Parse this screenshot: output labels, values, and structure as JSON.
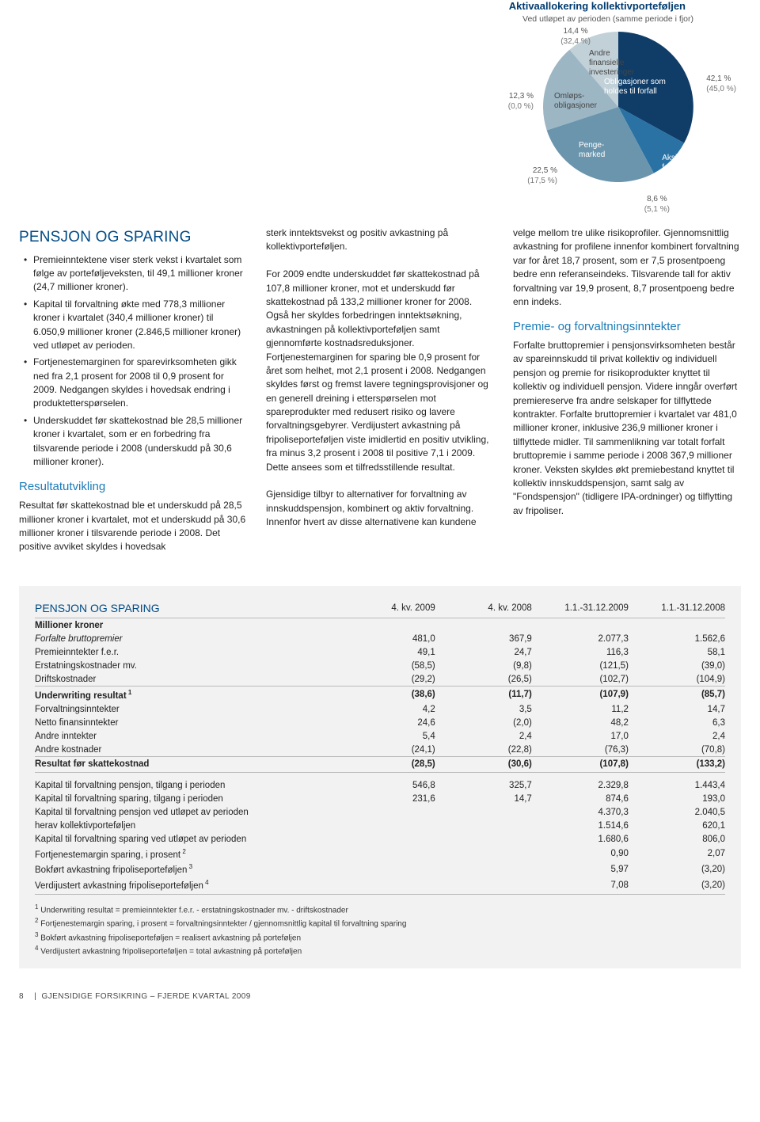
{
  "chart": {
    "title": "Aktivaallokering kollektivporteføljen",
    "subtitle": "Ved utløpet av perioden (samme periode i fjor)",
    "type": "pie",
    "background_color": "#ffffff",
    "labels": {
      "l1": {
        "main": "14,4 %",
        "sub": "(32,4 %)",
        "seg": "Andre finansielle investeringer"
      },
      "l2": {
        "main": "12,3 %",
        "sub": "(0,0 %)",
        "seg": "Omløps-\nobligasjoner"
      },
      "l3": {
        "main": "22,5 %",
        "sub": "(17,5 %)",
        "seg": "Penge-\nmarked"
      },
      "l4": {
        "main": "8,6 %",
        "sub": "(5,1 %)",
        "seg": "Aksje-\nfond"
      },
      "l5": {
        "main": "42,1 %",
        "sub": "(45,0 %)",
        "seg": "Obligasjoner som holdes til forfall"
      }
    },
    "slices": [
      {
        "name": "Obligasjoner som holdes til forfall",
        "value": 42.1,
        "prev": 45.0,
        "color": "#0f3d68"
      },
      {
        "name": "Aksjefond",
        "value": 8.6,
        "prev": 5.1,
        "color": "#2a72a4"
      },
      {
        "name": "Pengemarked",
        "value": 22.5,
        "prev": 17.5,
        "color": "#6b95ad"
      },
      {
        "name": "Omløpsobligasjoner",
        "value": 12.3,
        "prev": 0.0,
        "color": "#9db6c3"
      },
      {
        "name": "Andre finansielle investeringer",
        "value": 14.4,
        "prev": 32.4,
        "color": "#c2d1d8"
      }
    ]
  },
  "headings": {
    "h1": "PENSJON OG SPARING",
    "resultat": "Resultatutvikling",
    "premie": "Premie- og forvaltningsinntekter"
  },
  "bullets": {
    "b1": "Premieinntektene viser sterk vekst i kvartalet som følge av porteføljeveksten, til 49,1 millioner kroner (24,7 millioner kroner).",
    "b2": "Kapital til forvaltning økte med 778,3 millioner kroner i kvartalet (340,4 millioner kroner) til 6.050,9 millioner kroner (2.846,5 millioner kroner) ved utløpet av perioden.",
    "b3": "Fortjenestemarginen for sparevirksomheten gikk ned fra 2,1 prosent for 2008 til 0,9 prosent for 2009. Nedgangen skyldes i hovedsak endring i produktetterspørselen.",
    "b4": "Underskuddet før skattekostnad ble 28,5 millioner kroner i kvartalet, som er en forbedring fra tilsvarende periode i 2008 (underskudd på 30,6 millioner kroner)."
  },
  "paras": {
    "p1": "Resultat før skattekostnad ble et underskudd på 28,5 millioner kroner i kvartalet, mot et underskudd på 30,6 millioner kroner i tilsvarende periode i 2008. Det positive avviket skyldes i hovedsak",
    "p2": "sterk inntektsvekst og positiv avkastning på kollektivporteføljen.",
    "p3": "For 2009 endte underskuddet før skattekostnad på 107,8 millioner kroner, mot et underskudd før skattekostnad på 133,2 millioner kroner for 2008. Også her skyldes forbedringen inntektsøkning, avkastningen på kollektivporteføljen samt gjennomførte kostnadsreduksjoner. Fortjenestemarginen for sparing ble 0,9 prosent for året som helhet, mot 2,1 prosent i 2008. Nedgangen skyldes først og fremst lavere tegningsprovisjoner og en generell dreining i etterspørselen mot spareprodukter med redusert risiko og lavere forvaltningsgebyrer. Verdijustert avkastning på fripoliseporteføljen viste imidlertid en positiv utvikling, fra minus 3,2 prosent i 2008 til positive 7,1 i 2009. Dette ansees som et tilfredsstillende resultat.",
    "p4": "Gjensidige tilbyr to alternativer for forvaltning av innskuddspensjon, kombinert og aktiv forvaltning. Innenfor hvert av disse alternativene kan kundene",
    "p5": "velge mellom tre ulike risikoprofiler. Gjennomsnittlig avkastning for profilene innenfor kombinert forvaltning var for året 18,7 prosent, som er 7,5 prosentpoeng bedre enn referanseindeks. Tilsvarende tall for aktiv forvaltning var 19,9 prosent, 8,7 prosentpoeng bedre enn indeks.",
    "p6": "Forfalte bruttopremier i pensjonsvirksomheten består av spareinnskudd til privat kollektiv og individuell pensjon og premie for risikoprodukter knyttet til kollektiv og individuell pensjon. Videre inngår overført premiereserve fra andre selskaper for tilflyttede kontrakter. Forfalte bruttopremier i kvartalet var 481,0 millioner kroner, inklusive 236,9 millioner kroner i tilflyttede midler. Til sammenlikning var totalt forfalt bruttopremie i samme periode i 2008 367,9 millioner kroner. Veksten skyldes økt premiebestand knyttet til kollektiv innskuddspensjon, samt salg av \"Fondspensjon\" (tidligere IPA-ordninger) og tilflytting av fripoliser."
  },
  "table": {
    "title": "PENSJON OG SPARING",
    "columns": [
      "4. kv. 2009",
      "4. kv. 2008",
      "1.1.-31.12.2009",
      "1.1.-31.12.2008"
    ],
    "unit": "Millioner kroner",
    "rows": [
      {
        "label": "Forfalte bruttopremier",
        "vals": [
          "481,0",
          "367,9",
          "2.077,3",
          "1.562,6"
        ],
        "italic": true
      },
      {
        "label": "Premieinntekter f.e.r.",
        "vals": [
          "49,1",
          "24,7",
          "116,3",
          "58,1"
        ]
      },
      {
        "label": "Erstatningskostnader mv.",
        "vals": [
          "(58,5)",
          "(9,8)",
          "(121,5)",
          "(39,0)"
        ]
      },
      {
        "label": "Driftskostnader",
        "vals": [
          "(29,2)",
          "(26,5)",
          "(102,7)",
          "(104,9)"
        ]
      },
      {
        "label": "Underwriting resultat",
        "sup": "1",
        "vals": [
          "(38,6)",
          "(11,7)",
          "(107,9)",
          "(85,7)"
        ],
        "bold": true,
        "hr": true
      },
      {
        "label": "Forvaltningsinntekter",
        "vals": [
          "4,2",
          "3,5",
          "11,2",
          "14,7"
        ]
      },
      {
        "label": "Netto finansinntekter",
        "vals": [
          "24,6",
          "(2,0)",
          "48,2",
          "6,3"
        ]
      },
      {
        "label": "Andre inntekter",
        "vals": [
          "5,4",
          "2,4",
          "17,0",
          "2,4"
        ]
      },
      {
        "label": "Andre kostnader",
        "vals": [
          "(24,1)",
          "(22,8)",
          "(76,3)",
          "(70,8)"
        ]
      },
      {
        "label": "Resultat før skattekostnad",
        "vals": [
          "(28,5)",
          "(30,6)",
          "(107,8)",
          "(133,2)"
        ],
        "bold": true,
        "hr": true,
        "hrb": true
      }
    ],
    "rows2": [
      {
        "label": "Kapital til forvaltning pensjon, tilgang i perioden",
        "vals": [
          "546,8",
          "325,7",
          "2.329,8",
          "1.443,4"
        ]
      },
      {
        "label": "Kapital til forvaltning sparing, tilgang i perioden",
        "vals": [
          "231,6",
          "14,7",
          "874,6",
          "193,0"
        ]
      },
      {
        "label": "Kapital til forvaltning pensjon ved utløpet av perioden",
        "vals": [
          "",
          "",
          "4.370,3",
          "2.040,5"
        ]
      },
      {
        "label": "herav kollektivporteføljen",
        "vals": [
          "",
          "",
          "1.514,6",
          "620,1"
        ],
        "indent": true
      },
      {
        "label": "Kapital til forvaltning sparing ved utløpet av perioden",
        "vals": [
          "",
          "",
          "1.680,6",
          "806,0"
        ]
      },
      {
        "label": "Fortjenestemargin sparing, i prosent",
        "sup": "2",
        "vals": [
          "",
          "",
          "0,90",
          "2,07"
        ]
      },
      {
        "label": "Bokført avkastning fripoliseporteføljen",
        "sup": "3",
        "vals": [
          "",
          "",
          "5,97",
          "(3,20)"
        ]
      },
      {
        "label": "Verdijustert avkastning fripoliseporteføljen",
        "sup": "4",
        "vals": [
          "",
          "",
          "7,08",
          "(3,20)"
        ],
        "hrb": true
      }
    ],
    "footnotes": [
      "Underwriting resultat = premieinntekter f.e.r. - erstatningskostnader mv. - driftskostnader",
      "Fortjenestemargin sparing, i prosent = forvaltningsinntekter / gjennomsnittlig kapital til forvaltning sparing",
      "Bokført avkastning fripoliseporteføljen = realisert avkastning på porteføljen",
      "Verdijustert avkastning fripoliseporteføljen = total avkastning på porteføljen"
    ]
  },
  "footer": {
    "page": "8",
    "text": "GJENSIDIGE FORSIKRING – FJERDE KVARTAL 2009"
  }
}
